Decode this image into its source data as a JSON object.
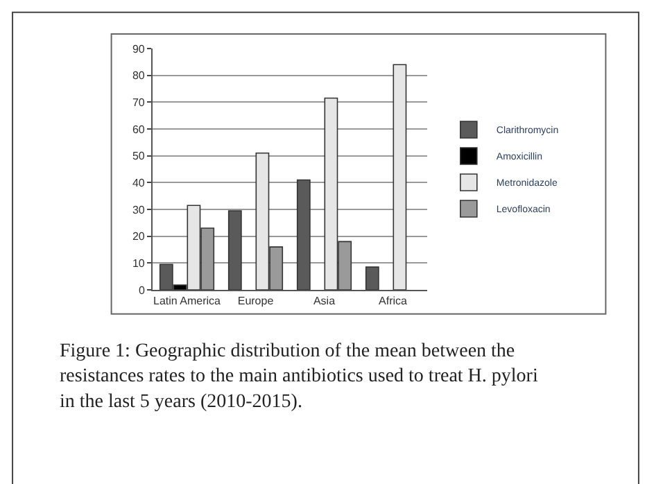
{
  "chart_data": {
    "type": "bar",
    "categories": [
      "Latin America",
      "Europe",
      "Asia",
      "Africa"
    ],
    "series": [
      {
        "name": "Clarithromycin",
        "color": "#5a5a5a",
        "values": [
          9.5,
          29.5,
          41,
          8.5
        ]
      },
      {
        "name": "Amoxicillin",
        "color": "#000000",
        "values": [
          1.8,
          null,
          null,
          null
        ]
      },
      {
        "name": "Metronidazole",
        "color": "#e6e6e6",
        "values": [
          31.5,
          51,
          71.5,
          84
        ]
      },
      {
        "name": "Levofloxacin",
        "color": "#9a9a9a",
        "values": [
          23,
          16,
          18,
          null
        ]
      }
    ],
    "ylim": [
      0,
      90
    ],
    "yticks": [
      0,
      10,
      20,
      30,
      40,
      50,
      60,
      70,
      80,
      90
    ],
    "grid": "y",
    "legend": "right",
    "annotations": [
      "Figure 1: Geographic distribution of the mean between the resistances rates to the main antibiotics used to treat H. pylori in the last 5 years (2010-2015)."
    ]
  }
}
